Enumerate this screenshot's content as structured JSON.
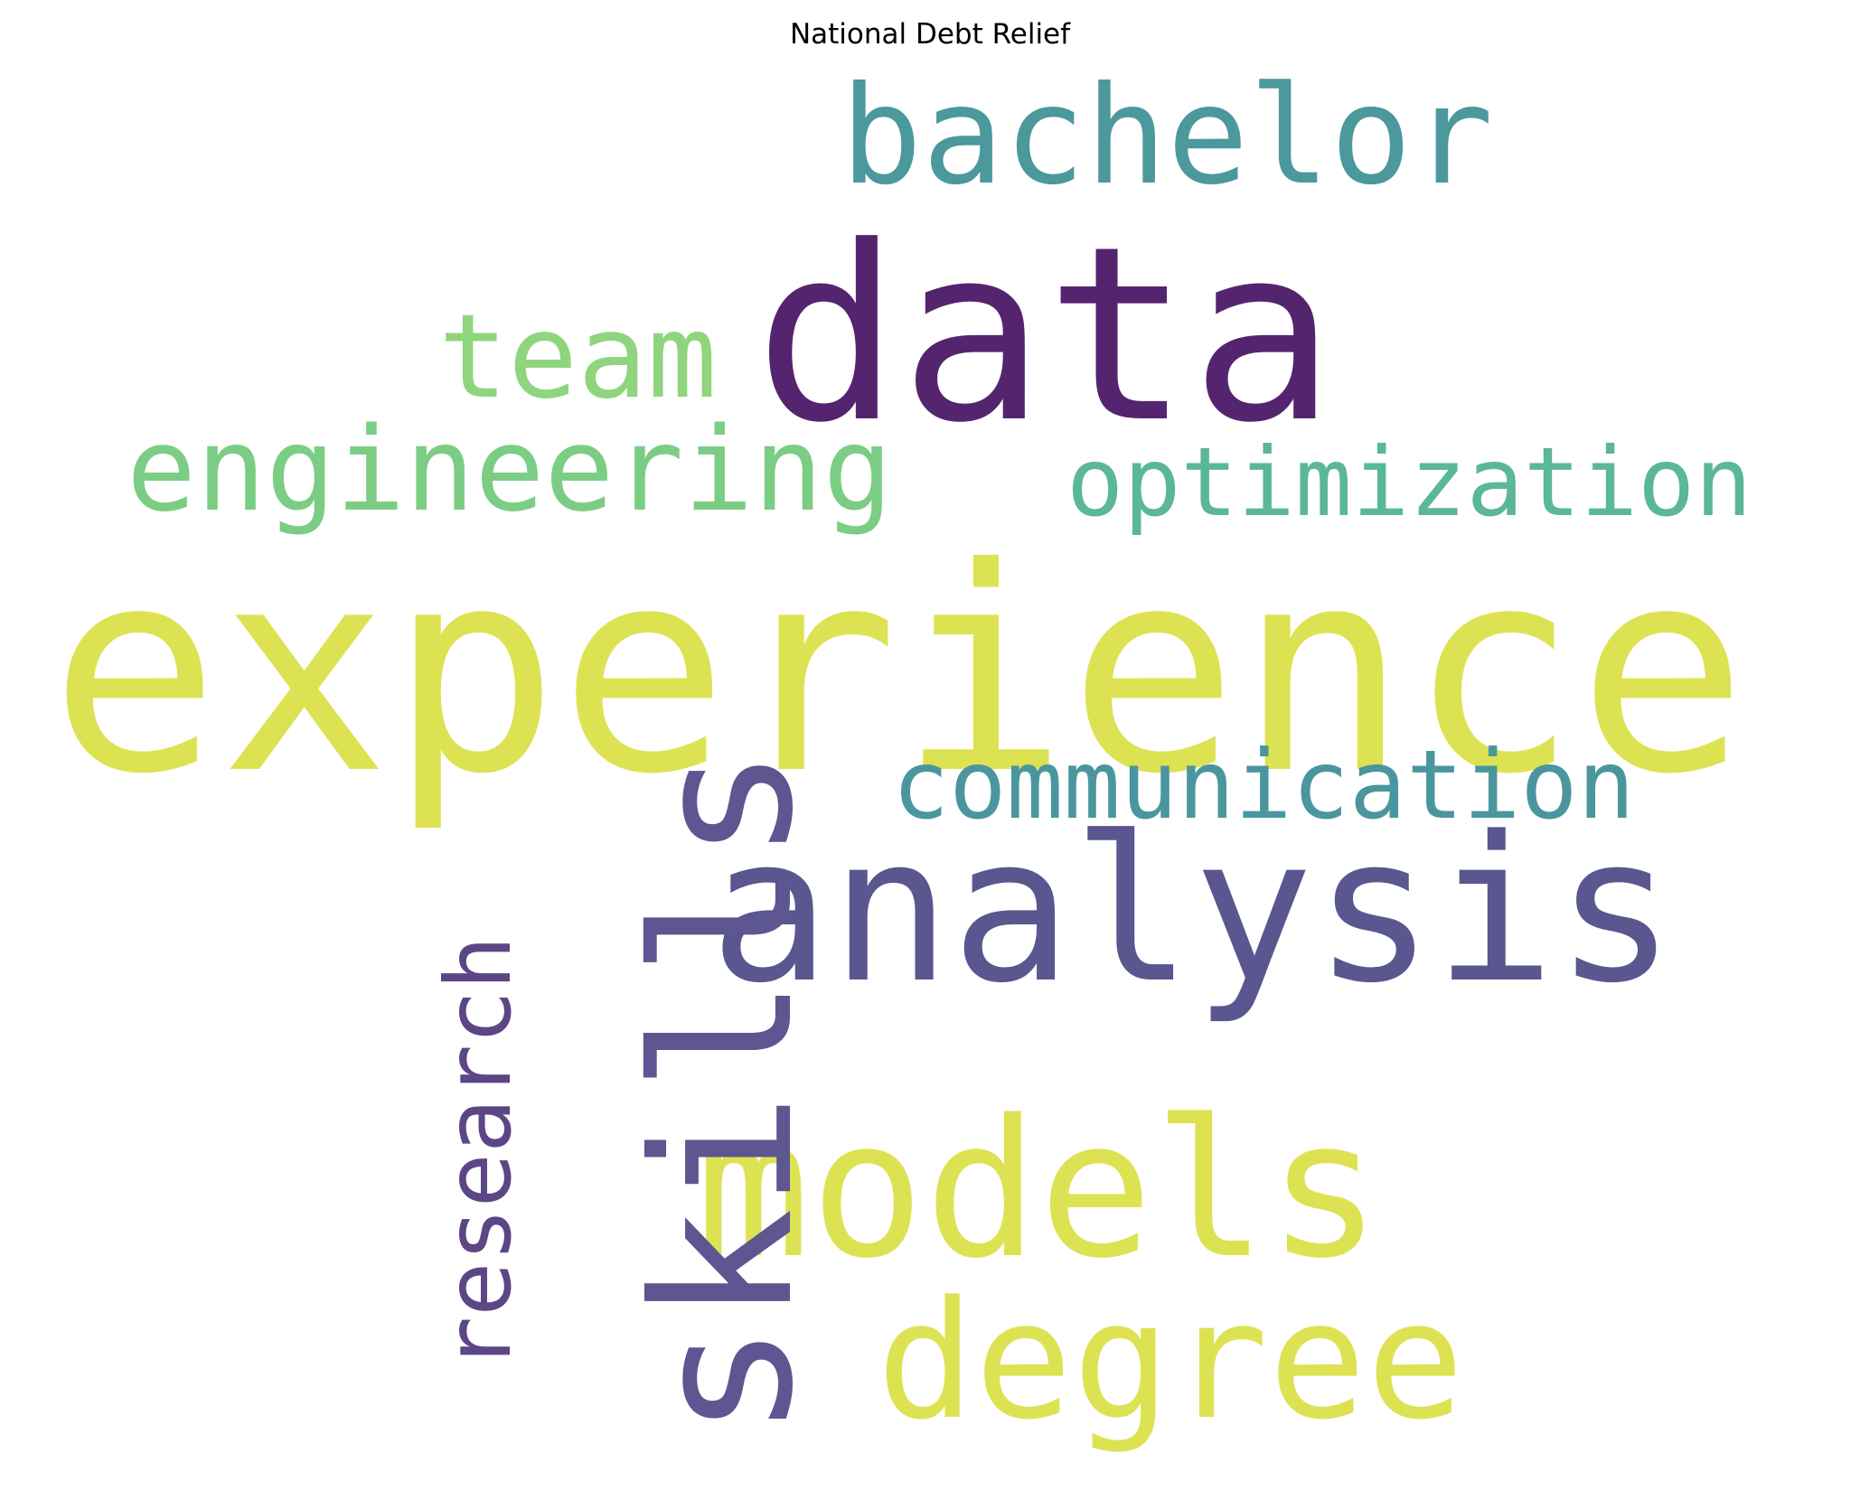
{
  "title": "National Debt Relief",
  "words": [
    {
      "key": "experience",
      "text": "experience",
      "color": "#dde253"
    },
    {
      "key": "data",
      "text": "data",
      "color": "#55246f"
    },
    {
      "key": "analysis",
      "text": "analysis",
      "color": "#5a568f"
    },
    {
      "key": "models",
      "text": "models",
      "color": "#dde253"
    },
    {
      "key": "degree",
      "text": "degree",
      "color": "#dde253"
    },
    {
      "key": "bachelor",
      "text": "bachelor",
      "color": "#4b989d"
    },
    {
      "key": "team",
      "text": "team",
      "color": "#8fd57e"
    },
    {
      "key": "engineering",
      "text": "engineering",
      "color": "#7ccd84"
    },
    {
      "key": "optimization",
      "text": "optimization",
      "color": "#5ab797"
    },
    {
      "key": "communication",
      "text": "communication",
      "color": "#4b969e"
    },
    {
      "key": "skills",
      "text": "skills",
      "color": "#5d5691",
      "orientation": "vertical"
    },
    {
      "key": "research",
      "text": "research",
      "color": "#5c4685",
      "orientation": "vertical"
    }
  ]
}
